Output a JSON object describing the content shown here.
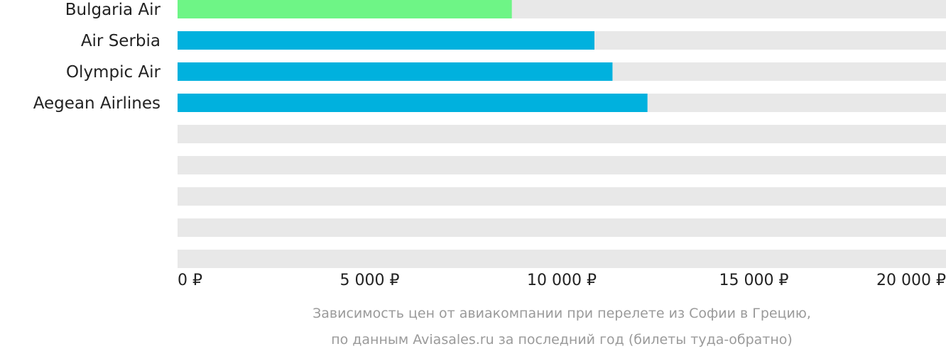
{
  "chart_data": {
    "type": "bar",
    "orientation": "horizontal",
    "categories": [
      "Bulgaria Air",
      "Air Serbia",
      "Olympic Air",
      "Aegean Airlines",
      "",
      "",
      "",
      "",
      ""
    ],
    "values": [
      8700,
      10850,
      11320,
      12230,
      null,
      null,
      null,
      null,
      null
    ],
    "xlim": [
      0,
      20000
    ],
    "xticks": [
      0,
      5000,
      10000,
      15000,
      20000
    ],
    "xtick_labels": [
      "0 ₽",
      "5 000 ₽",
      "10 000 ₽",
      "15 000 ₽",
      "20 000 ₽"
    ],
    "unit": "₽",
    "grid": false,
    "legend": "none",
    "title": "",
    "xlabel": "",
    "ylabel": "",
    "colors": {
      "highlight": "#6ef586",
      "bar": "#00b1de",
      "track": "#e8e8e8",
      "text": "#222222",
      "caption": "#9a9a9a"
    },
    "highlight_index": 0
  },
  "caption": {
    "line1": "Зависимость цен от авиакомпании при перелете из Софии в Грецию,",
    "line2": "по данным Aviasales.ru за последний год (билеты туда-обратно)"
  }
}
